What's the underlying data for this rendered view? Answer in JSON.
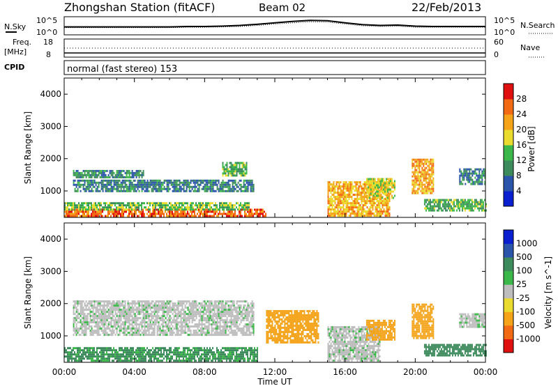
{
  "header": {
    "station": "Zhongshan Station (fitACF)",
    "beam": "Beam 02",
    "date": "22/Feb/2013"
  },
  "strip_noise": {
    "left_label": "N.Sky",
    "left_ticks": [
      "10^5",
      "10^0"
    ],
    "right_label": "N.Search",
    "right_ticks": [
      "10^5",
      "10^0"
    ]
  },
  "strip_freq": {
    "left_label_1": "Freq.",
    "left_label_2": "[MHz]",
    "left_ticks": [
      "18",
      "8"
    ],
    "right_label": "Nave",
    "right_ticks": [
      "60",
      "0"
    ]
  },
  "cpid": {
    "label": "CPID",
    "text": "normal (fast stereo) 153"
  },
  "colors": {
    "power": [
      "#0a1fd0",
      "#2a55aa",
      "#3d8a5d",
      "#3cb84a",
      "#eadc2e",
      "#f5a41a",
      "#f26a14",
      "#e01010"
    ],
    "velocity": [
      "#e01010",
      "#f26a14",
      "#f5a41a",
      "#eadc2e",
      "#bdbdbd",
      "#3cb84a",
      "#3d8a5d",
      "#2a55aa",
      "#0a1fd0"
    ],
    "ground_scatter": "#bdbdbd"
  },
  "chart_data": [
    {
      "type": "heatmap",
      "panel": "power",
      "ylabel": "Slant Range [km]",
      "ylim": [
        180,
        4500
      ],
      "y_ticks": [
        "1000",
        "2000",
        "3000",
        "4000"
      ],
      "xlim_hours": [
        0,
        24
      ],
      "colorbar": {
        "label": "Power [dB]",
        "ticks": [
          "4",
          "8",
          "12",
          "16",
          "20",
          "24",
          "28"
        ],
        "range": [
          0,
          32
        ]
      },
      "regions": [
        {
          "t": [
            0,
            11.5
          ],
          "r": [
            220,
            450
          ],
          "level": 26,
          "note": "strong near-range echoes"
        },
        {
          "t": [
            0,
            10.5
          ],
          "r": [
            450,
            650
          ],
          "level": 14
        },
        {
          "t": [
            0.5,
            10.8
          ],
          "r": [
            1000,
            1350
          ],
          "level": 9
        },
        {
          "t": [
            0.5,
            4.5
          ],
          "r": [
            1400,
            1650
          ],
          "level": 10
        },
        {
          "t": [
            9.0,
            10.4
          ],
          "r": [
            1500,
            1900
          ],
          "level": 13
        },
        {
          "t": [
            15.0,
            18.5
          ],
          "r": [
            250,
            1300
          ],
          "level": 21
        },
        {
          "t": [
            17.2,
            18.8
          ],
          "r": [
            800,
            1400
          ],
          "level": 18
        },
        {
          "t": [
            19.8,
            21.0
          ],
          "r": [
            950,
            2000
          ],
          "level": 22
        },
        {
          "t": [
            20.5,
            24.0
          ],
          "r": [
            400,
            750
          ],
          "level": 13
        },
        {
          "t": [
            22.5,
            24.0
          ],
          "r": [
            1200,
            1700
          ],
          "level": 9
        }
      ]
    },
    {
      "type": "heatmap",
      "panel": "velocity",
      "ylabel": "Slant Range [km]",
      "ylim": [
        180,
        4500
      ],
      "y_ticks": [
        "1000",
        "2000",
        "3000",
        "4000"
      ],
      "xlabel": "Time UT",
      "x_ticks": [
        "00:00",
        "04:00",
        "08:00",
        "12:00",
        "16:00",
        "20:00",
        "00:00"
      ],
      "xlim_hours": [
        0,
        24
      ],
      "colorbar": {
        "label": "Velocity [m s^-1]",
        "ticks": [
          "1000",
          "500",
          "100",
          "25",
          "-25",
          "-100",
          "-500",
          "-1000"
        ]
      },
      "regions": [
        {
          "t": [
            0,
            11.0
          ],
          "r": [
            220,
            650
          ],
          "value": 150
        },
        {
          "t": [
            0.5,
            10.8
          ],
          "r": [
            1000,
            2100
          ],
          "value": "ground"
        },
        {
          "t": [
            11.5,
            14.5
          ],
          "r": [
            800,
            1800
          ],
          "value": -300
        },
        {
          "t": [
            15.0,
            18.0
          ],
          "r": [
            250,
            1300
          ],
          "value": "ground"
        },
        {
          "t": [
            17.2,
            18.8
          ],
          "r": [
            900,
            1500
          ],
          "value": -400
        },
        {
          "t": [
            19.8,
            21.0
          ],
          "r": [
            900,
            2000
          ],
          "value": -400
        },
        {
          "t": [
            20.5,
            24.0
          ],
          "r": [
            400,
            750
          ],
          "value": 200
        },
        {
          "t": [
            22.5,
            24.0
          ],
          "r": [
            1300,
            1700
          ],
          "value": "ground"
        }
      ]
    }
  ],
  "noise_series": {
    "sky": [
      2.2,
      2.2,
      2.2,
      2.2,
      2.2,
      2.2,
      2.2,
      2.3,
      2.3,
      2.4,
      2.6,
      2.9,
      3.3,
      3.7,
      4.0,
      3.9,
      3.3,
      2.8,
      2.6,
      2.7,
      2.4,
      2.3,
      2.3,
      2.3,
      2.3
    ],
    "search": [
      2.0,
      2.0,
      2.0,
      2.0,
      2.0,
      2.0,
      2.0,
      2.1,
      2.1,
      2.2,
      2.3,
      2.6,
      3.0,
      3.3,
      3.6,
      3.5,
      3.0,
      2.5,
      2.3,
      2.4,
      2.1,
      2.1,
      2.1,
      2.1,
      2.1
    ]
  }
}
